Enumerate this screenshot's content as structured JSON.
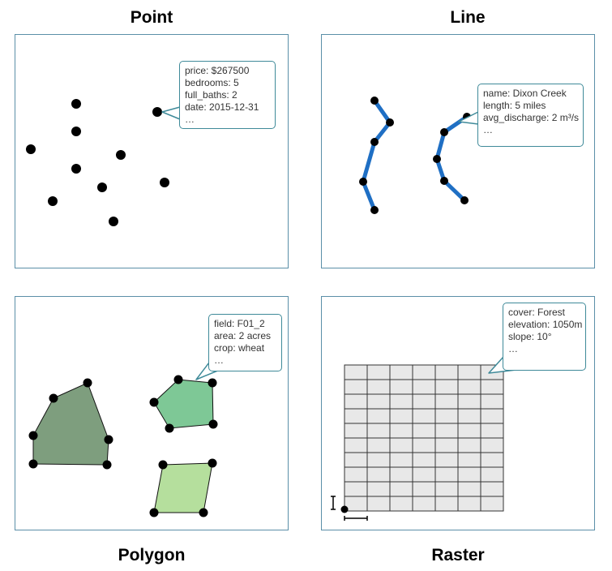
{
  "titles": {
    "point": "Point",
    "line": "Line",
    "polygon": "Polygon",
    "raster": "Raster"
  },
  "point_callout": [
    "price: $267500",
    "bedrooms: 5",
    "full_baths: 2",
    "date: 2015-12-31",
    "…"
  ],
  "line_callout": [
    "name: Dixon Creek",
    "length: 5 miles",
    "avg_discharge: 2 m³/s",
    "…"
  ],
  "polygon_callout": [
    "field: F01_2",
    "area: 2 acres",
    "crop: wheat",
    "…"
  ],
  "raster_callout": [
    "cover: Forest",
    "elevation: 1050m",
    "slope: 10°",
    "…"
  ],
  "colors": {
    "panel_border": "#5b8fa8",
    "callout_border": "#3f8a99",
    "line_stroke": "#1f6fc4",
    "polygon_dark": "#7e9e7e",
    "polygon_mid": "#7ec896",
    "polygon_light": "#b5df9d",
    "raster_cell": "#e8e8e8"
  }
}
